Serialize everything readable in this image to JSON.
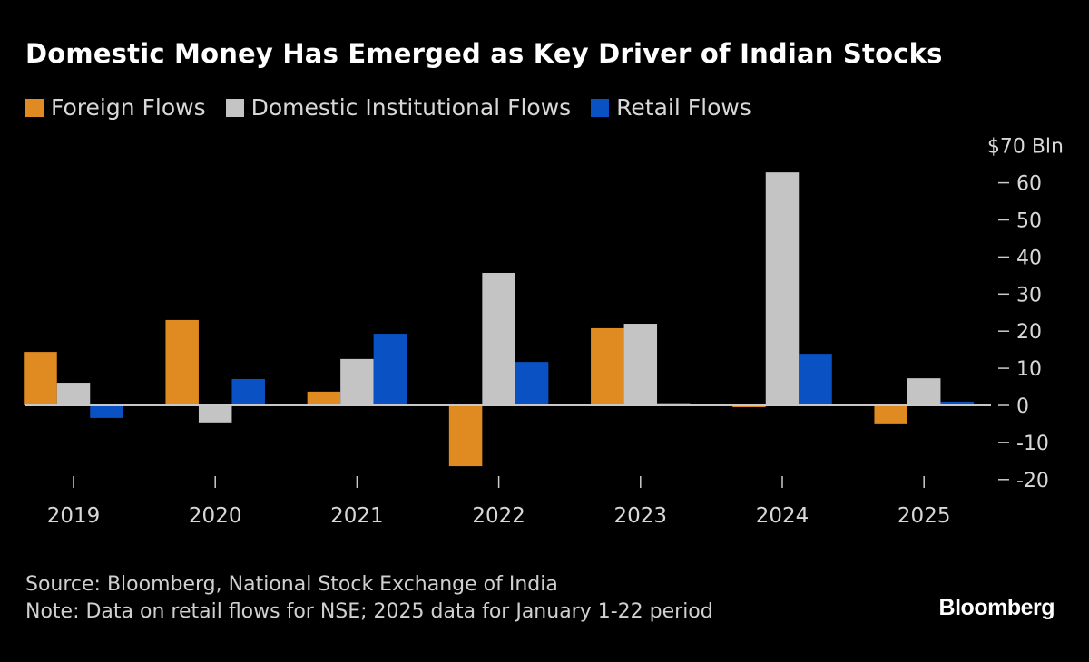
{
  "chart_data": {
    "type": "bar",
    "title": "Domestic Money Has Emerged as Key Driver of Indian Stocks",
    "categories": [
      "2019",
      "2020",
      "2021",
      "2022",
      "2023",
      "2024",
      "2025"
    ],
    "series": [
      {
        "name": "Foreign Flows",
        "color": "#e08a22",
        "values": [
          14.4,
          23.0,
          3.7,
          -16.4,
          20.8,
          -0.5,
          -5.1
        ]
      },
      {
        "name": "Domestic Institutional Flows",
        "color": "#c4c4c4",
        "values": [
          6.1,
          -4.6,
          12.5,
          35.7,
          22.0,
          62.8,
          7.3
        ]
      },
      {
        "name": "Retail Flows",
        "color": "#0a52c4",
        "values": [
          -3.4,
          7.1,
          19.3,
          11.7,
          0.7,
          13.9,
          1.0
        ]
      }
    ],
    "ylim": [
      -20,
      70
    ],
    "yticks": [
      -20,
      -10,
      0,
      10,
      20,
      30,
      40,
      50,
      60,
      70
    ],
    "ytick_labels": [
      "-20",
      "-10",
      "0",
      "10",
      "20",
      "30",
      "40",
      "50",
      "60",
      "$70 Bln"
    ],
    "y_axis_side": "right",
    "legend_position": "top-left",
    "grid": false
  },
  "footer": {
    "source": "Source: Bloomberg, National Stock Exchange of India",
    "note": "Note: Data on retail flows for NSE; 2025 data for January 1-22 period",
    "logo": "Bloomberg"
  }
}
